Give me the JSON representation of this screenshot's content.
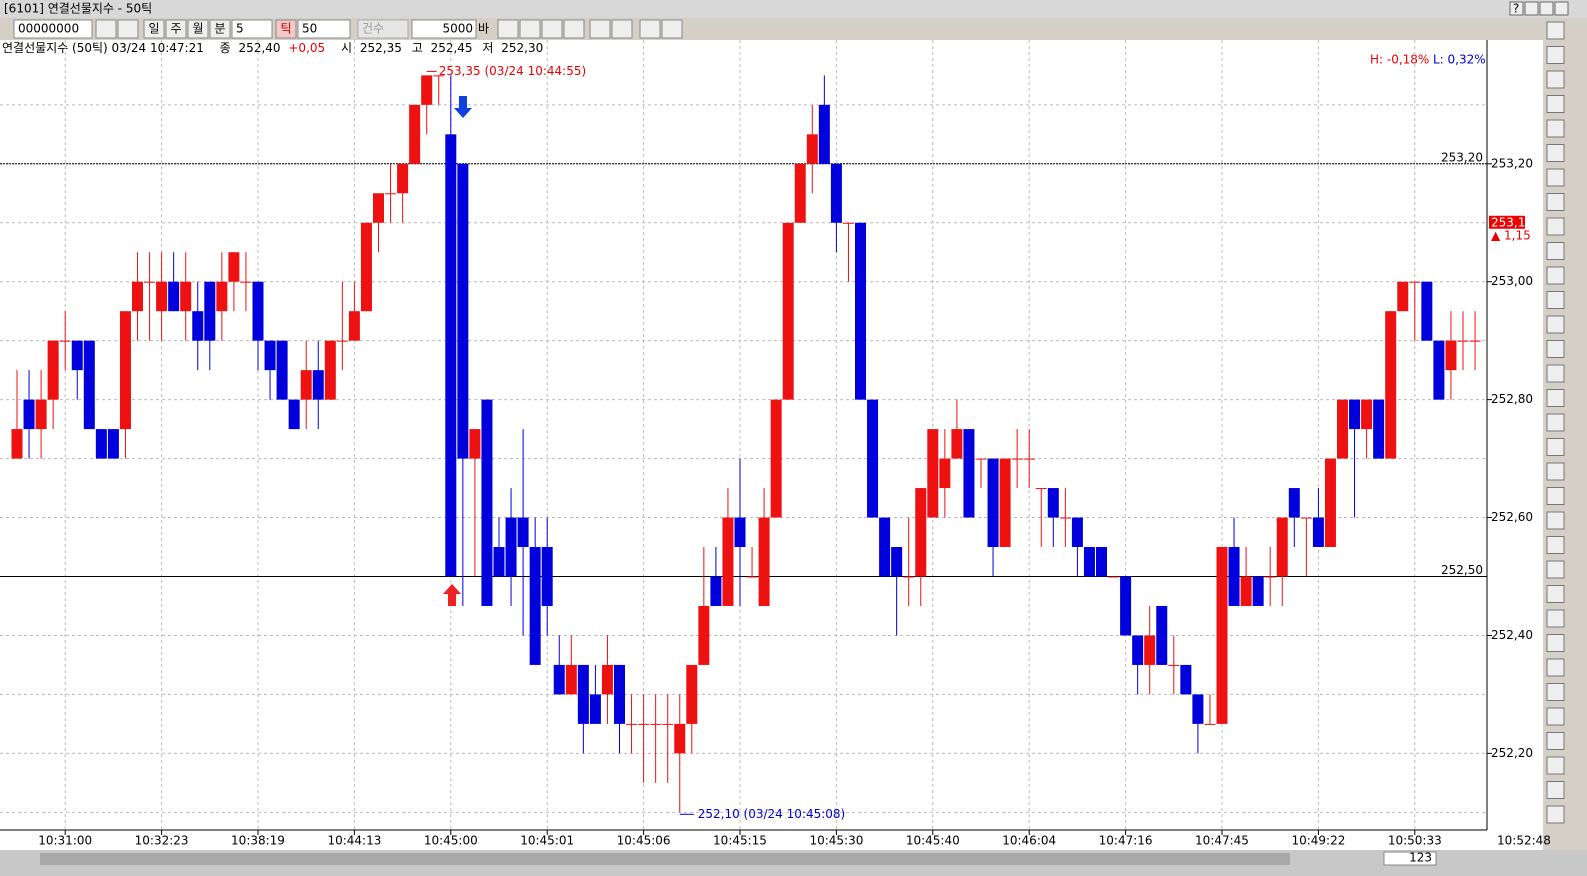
{
  "window": {
    "title": "[6101] 연결선물지수 - 50틱",
    "help": "?"
  },
  "toolbar": {
    "code": "00000000",
    "periods": [
      "일",
      "주",
      "월",
      "분"
    ],
    "minutes": "5",
    "tick": "틱",
    "ticks": "50",
    "count_label": "건수",
    "bars": "5000",
    "bar_label": "바"
  },
  "info": {
    "name": "연결선물지수 (50틱) 03/24 10:47:21",
    "close_label": "종",
    "close": "252,40",
    "change": "+0,05",
    "open_label": "시",
    "open": "252,35",
    "high_label": "고",
    "high": "252,45",
    "low_label": "저",
    "low": "252,30"
  },
  "status": {
    "time": "10:52:48",
    "count": "123"
  },
  "chart_data": {
    "type": "candlestick",
    "up_color": "#ee1111",
    "down_color": "#0000dd",
    "categories": [
      null,
      null,
      null,
      null,
      "10:31:00",
      null,
      null,
      null,
      null,
      null,
      null,
      null,
      "10:32:23",
      null,
      null,
      null,
      null,
      null,
      null,
      null,
      "10:38:19",
      null,
      null,
      null,
      null,
      null,
      null,
      null,
      "10:44:13",
      null,
      null,
      null,
      null,
      null,
      null,
      null,
      "10:45:00",
      null,
      null,
      null,
      null,
      null,
      null,
      null,
      "10:45:01",
      null,
      null,
      null,
      null,
      null,
      null,
      null,
      "10:45:06",
      null,
      null,
      null,
      null,
      null,
      null,
      null,
      "10:45:15",
      null,
      null,
      null,
      null,
      null,
      null,
      null,
      "10:45:30",
      null,
      null,
      null,
      null,
      null,
      null,
      null,
      "10:45:40",
      null,
      null,
      null,
      null,
      null,
      null,
      null,
      "10:46:04",
      null,
      null,
      null,
      null,
      null,
      null,
      null,
      "10:47:16",
      null,
      null,
      null,
      null,
      null,
      null,
      null,
      "10:47:45",
      null,
      null,
      null,
      null,
      null,
      null,
      null,
      "10:49:22",
      null,
      null,
      null,
      null,
      null,
      null,
      null,
      "10:50:33",
      null,
      null,
      null,
      null,
      null
    ],
    "open": [
      252.7,
      252.8,
      252.75,
      252.8,
      252.9,
      252.9,
      252.9,
      252.75,
      252.75,
      252.75,
      252.95,
      253.0,
      252.95,
      253.0,
      252.95,
      252.95,
      253.0,
      252.95,
      253.0,
      253.0,
      253.0,
      252.9,
      252.9,
      252.8,
      252.8,
      252.85,
      252.8,
      252.9,
      252.9,
      252.95,
      253.1,
      253.15,
      253.15,
      253.2,
      253.3,
      253.35,
      253.25,
      253.2,
      252.7,
      252.8,
      252.55,
      252.6,
      252.6,
      252.55,
      252.55,
      252.35,
      252.3,
      252.35,
      252.3,
      252.3,
      252.35,
      252.25,
      252.25,
      252.25,
      252.25,
      252.2,
      252.25,
      252.35,
      252.5,
      252.45,
      252.6,
      252.5,
      252.45,
      252.6,
      252.8,
      253.1,
      253.2,
      253.3,
      253.2,
      253.1,
      253.1,
      252.8,
      252.6,
      252.55,
      252.5,
      252.5,
      252.6,
      252.65,
      252.7,
      252.75,
      252.7,
      252.7,
      252.55,
      252.7,
      252.7,
      252.65,
      252.65,
      252.6,
      252.6,
      252.55,
      252.55,
      252.5,
      252.5,
      252.4,
      252.35,
      252.45,
      252.35,
      252.35,
      252.3,
      252.25,
      252.25,
      252.55,
      252.45,
      252.5,
      252.5,
      252.5,
      252.65,
      252.6,
      252.6,
      252.55,
      252.7,
      252.8,
      252.75,
      252.8,
      252.7,
      252.95,
      253.0,
      253.0,
      252.9,
      252.85,
      252.9,
      252.9
    ],
    "high": [
      252.85,
      252.85,
      252.85,
      252.9,
      252.95,
      252.9,
      252.9,
      252.75,
      252.75,
      252.95,
      253.05,
      253.05,
      253.05,
      253.05,
      253.05,
      253.0,
      253.0,
      253.05,
      253.05,
      253.05,
      253.0,
      252.9,
      252.9,
      252.8,
      252.9,
      252.9,
      252.9,
      253.0,
      253.0,
      253.1,
      253.15,
      253.2,
      253.2,
      253.3,
      253.35,
      253.35,
      253.35,
      253.2,
      252.75,
      252.8,
      252.6,
      252.65,
      252.75,
      252.6,
      252.6,
      252.4,
      252.4,
      252.35,
      252.35,
      252.4,
      252.35,
      252.3,
      252.3,
      252.3,
      252.3,
      252.3,
      252.35,
      252.55,
      252.55,
      252.65,
      252.7,
      252.55,
      252.65,
      252.8,
      253.1,
      253.2,
      253.3,
      253.35,
      253.2,
      253.1,
      253.1,
      252.8,
      252.6,
      252.55,
      252.6,
      252.65,
      252.75,
      252.75,
      252.8,
      252.75,
      252.7,
      252.7,
      252.7,
      252.75,
      252.75,
      252.65,
      252.65,
      252.65,
      252.6,
      252.55,
      252.55,
      252.5,
      252.5,
      252.4,
      252.45,
      252.45,
      252.4,
      252.35,
      252.3,
      252.3,
      252.55,
      252.6,
      252.55,
      252.5,
      252.55,
      252.6,
      252.65,
      252.6,
      252.65,
      252.7,
      252.8,
      252.8,
      252.8,
      252.8,
      252.95,
      253.0,
      253.0,
      253.0,
      252.9,
      252.95,
      252.95,
      252.95
    ],
    "low": [
      252.7,
      252.7,
      252.7,
      252.75,
      252.85,
      252.8,
      252.75,
      252.7,
      252.7,
      252.7,
      252.9,
      252.9,
      252.9,
      252.95,
      252.9,
      252.85,
      252.85,
      252.9,
      252.95,
      252.95,
      252.85,
      252.8,
      252.8,
      252.75,
      252.75,
      252.75,
      252.8,
      252.85,
      252.9,
      252.95,
      253.05,
      253.1,
      253.1,
      253.2,
      253.25,
      253.3,
      252.5,
      252.45,
      252.5,
      252.45,
      252.5,
      252.45,
      252.4,
      252.35,
      252.4,
      252.3,
      252.3,
      252.2,
      252.25,
      252.25,
      252.2,
      252.2,
      252.15,
      252.15,
      252.15,
      252.1,
      252.2,
      252.35,
      252.45,
      252.45,
      252.45,
      252.5,
      252.45,
      252.6,
      252.8,
      253.1,
      253.15,
      253.2,
      253.05,
      253.0,
      252.8,
      252.6,
      252.5,
      252.4,
      252.45,
      252.45,
      252.6,
      252.6,
      252.7,
      252.6,
      252.65,
      252.5,
      252.55,
      252.65,
      252.65,
      252.55,
      252.55,
      252.55,
      252.5,
      252.5,
      252.5,
      252.5,
      252.4,
      252.3,
      252.3,
      252.35,
      252.3,
      252.3,
      252.2,
      252.25,
      252.25,
      252.45,
      252.45,
      252.45,
      252.45,
      252.45,
      252.55,
      252.5,
      252.55,
      252.55,
      252.7,
      252.6,
      252.7,
      252.7,
      252.7,
      252.95,
      252.9,
      252.9,
      252.8,
      252.8,
      252.85,
      252.85
    ],
    "close": [
      252.75,
      252.75,
      252.8,
      252.9,
      252.9,
      252.85,
      252.75,
      252.7,
      252.7,
      252.95,
      253.0,
      253.0,
      253.0,
      252.95,
      253.0,
      252.9,
      252.9,
      253.0,
      253.05,
      253.0,
      252.9,
      252.85,
      252.8,
      252.75,
      252.85,
      252.8,
      252.9,
      252.9,
      252.95,
      253.1,
      253.15,
      253.15,
      253.2,
      253.3,
      253.35,
      253.35,
      252.5,
      252.7,
      252.75,
      252.45,
      252.5,
      252.5,
      252.55,
      252.35,
      252.45,
      252.3,
      252.35,
      252.25,
      252.25,
      252.35,
      252.25,
      252.25,
      252.25,
      252.25,
      252.25,
      252.25,
      252.35,
      252.45,
      252.45,
      252.6,
      252.55,
      252.5,
      252.6,
      252.8,
      253.1,
      253.2,
      253.25,
      253.2,
      253.1,
      253.1,
      252.8,
      252.6,
      252.5,
      252.5,
      252.5,
      252.65,
      252.75,
      252.7,
      252.75,
      252.6,
      252.7,
      252.55,
      252.7,
      252.7,
      252.7,
      252.65,
      252.6,
      252.6,
      252.55,
      252.5,
      252.5,
      252.5,
      252.4,
      252.35,
      252.4,
      252.35,
      252.35,
      252.3,
      252.25,
      252.25,
      252.55,
      252.45,
      252.5,
      252.45,
      252.5,
      252.6,
      252.6,
      252.6,
      252.55,
      252.7,
      252.8,
      252.75,
      252.8,
      252.7,
      252.95,
      253.0,
      253.0,
      252.9,
      252.8,
      252.9,
      252.9,
      252.9
    ],
    "ylim": [
      252.07,
      253.41
    ],
    "yticks": [
      {
        "value": 252.2,
        "label": "252,20"
      },
      {
        "value": 252.4,
        "label": "252,40"
      },
      {
        "value": 252.6,
        "label": "252,60"
      },
      {
        "value": 252.8,
        "label": "252,80"
      },
      {
        "value": 253.0,
        "label": "253,00"
      },
      {
        "value": 253.2,
        "label": "253,20"
      }
    ],
    "ygrid": [
      252.1,
      252.3,
      252.5,
      252.7,
      252.9,
      253.1,
      253.3
    ],
    "hlines": [
      {
        "value": 253.2,
        "label": "253,20"
      },
      {
        "value": 252.5,
        "label": "252,50"
      }
    ],
    "current": {
      "value": 253.1,
      "label": "253,10",
      "change": "▲ 1,15"
    },
    "high_note": "253,35 (03/24 10:44:55)",
    "low_note": "252,10 (03/24 10:45:08)",
    "stats": {
      "high": "H: -0,18%",
      "low": "L: 0,32%"
    },
    "grid": true
  }
}
